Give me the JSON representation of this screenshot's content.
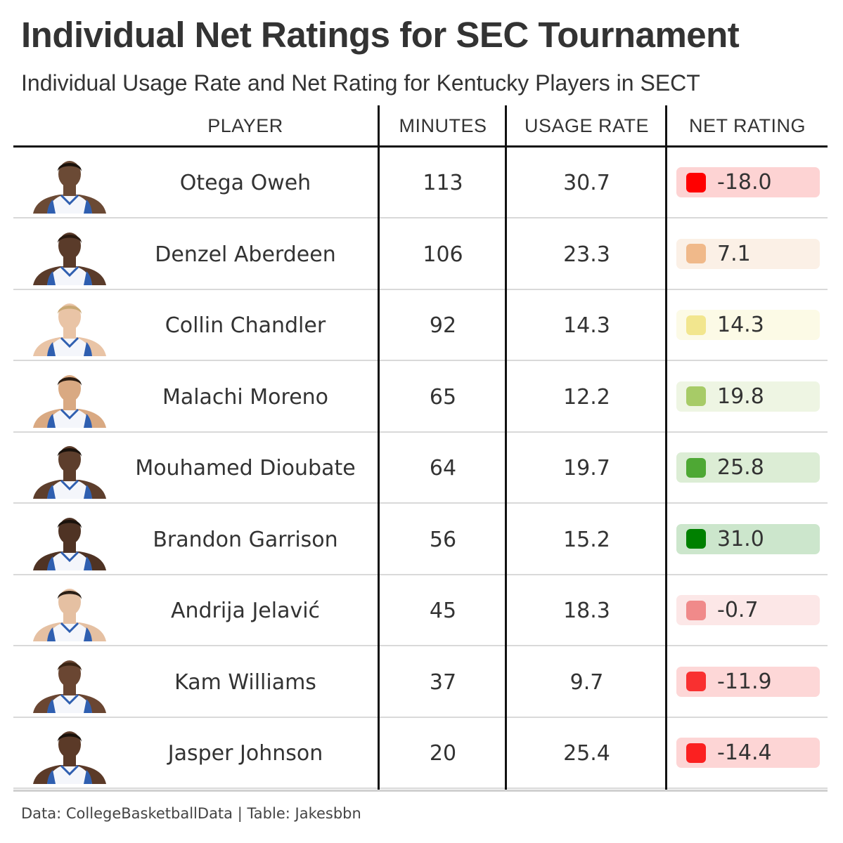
{
  "chart_data": {
    "type": "table",
    "title": "Individual Net Ratings for SEC Tournament",
    "subtitle": "Individual Usage Rate and Net Rating for Kentucky Players in SECT",
    "columns": [
      "PLAYER",
      "MINUTES",
      "USAGE RATE",
      "NET RATING"
    ],
    "rows": [
      {
        "player": "Otega Oweh",
        "minutes": "113",
        "usage_rate": "30.7",
        "net_rating": "-18.0",
        "net_value": -18.0,
        "swatch_color": "#ff0000",
        "bg_color": "#fdd3d3"
      },
      {
        "player": "Denzel Aberdeen",
        "minutes": "106",
        "usage_rate": "23.3",
        "net_rating": "7.1",
        "net_value": 7.1,
        "swatch_color": "#f0b98a",
        "bg_color": "#fbf0e6"
      },
      {
        "player": "Collin Chandler",
        "minutes": "92",
        "usage_rate": "14.3",
        "net_rating": "14.3",
        "net_value": 14.3,
        "swatch_color": "#f2e68e",
        "bg_color": "#fcfae6"
      },
      {
        "player": "Malachi Moreno",
        "minutes": "65",
        "usage_rate": "12.2",
        "net_rating": "19.8",
        "net_value": 19.8,
        "swatch_color": "#a7cb67",
        "bg_color": "#eef5e3"
      },
      {
        "player": "Mouhamed Dioubate",
        "minutes": "64",
        "usage_rate": "19.7",
        "net_rating": "25.8",
        "net_value": 25.8,
        "swatch_color": "#4ea834",
        "bg_color": "#dcedd5"
      },
      {
        "player": "Brandon Garrison",
        "minutes": "56",
        "usage_rate": "15.2",
        "net_rating": "31.0",
        "net_value": 31.0,
        "swatch_color": "#008000",
        "bg_color": "#cce6cc"
      },
      {
        "player": "Andrija Jelavić",
        "minutes": "45",
        "usage_rate": "18.3",
        "net_rating": "-0.7",
        "net_value": -0.7,
        "swatch_color": "#f08a8a",
        "bg_color": "#fce7e7"
      },
      {
        "player": "Kam Williams",
        "minutes": "37",
        "usage_rate": "9.7",
        "net_rating": "-11.9",
        "net_value": -11.9,
        "swatch_color": "#f93030",
        "bg_color": "#fdd7d7"
      },
      {
        "player": "Jasper Johnson",
        "minutes": "20",
        "usage_rate": "25.4",
        "net_rating": "-14.4",
        "net_value": -14.4,
        "swatch_color": "#fb2020",
        "bg_color": "#fdd5d5"
      }
    ],
    "source": "Data: CollegeBasketballData | Table: Jakesbbn"
  }
}
